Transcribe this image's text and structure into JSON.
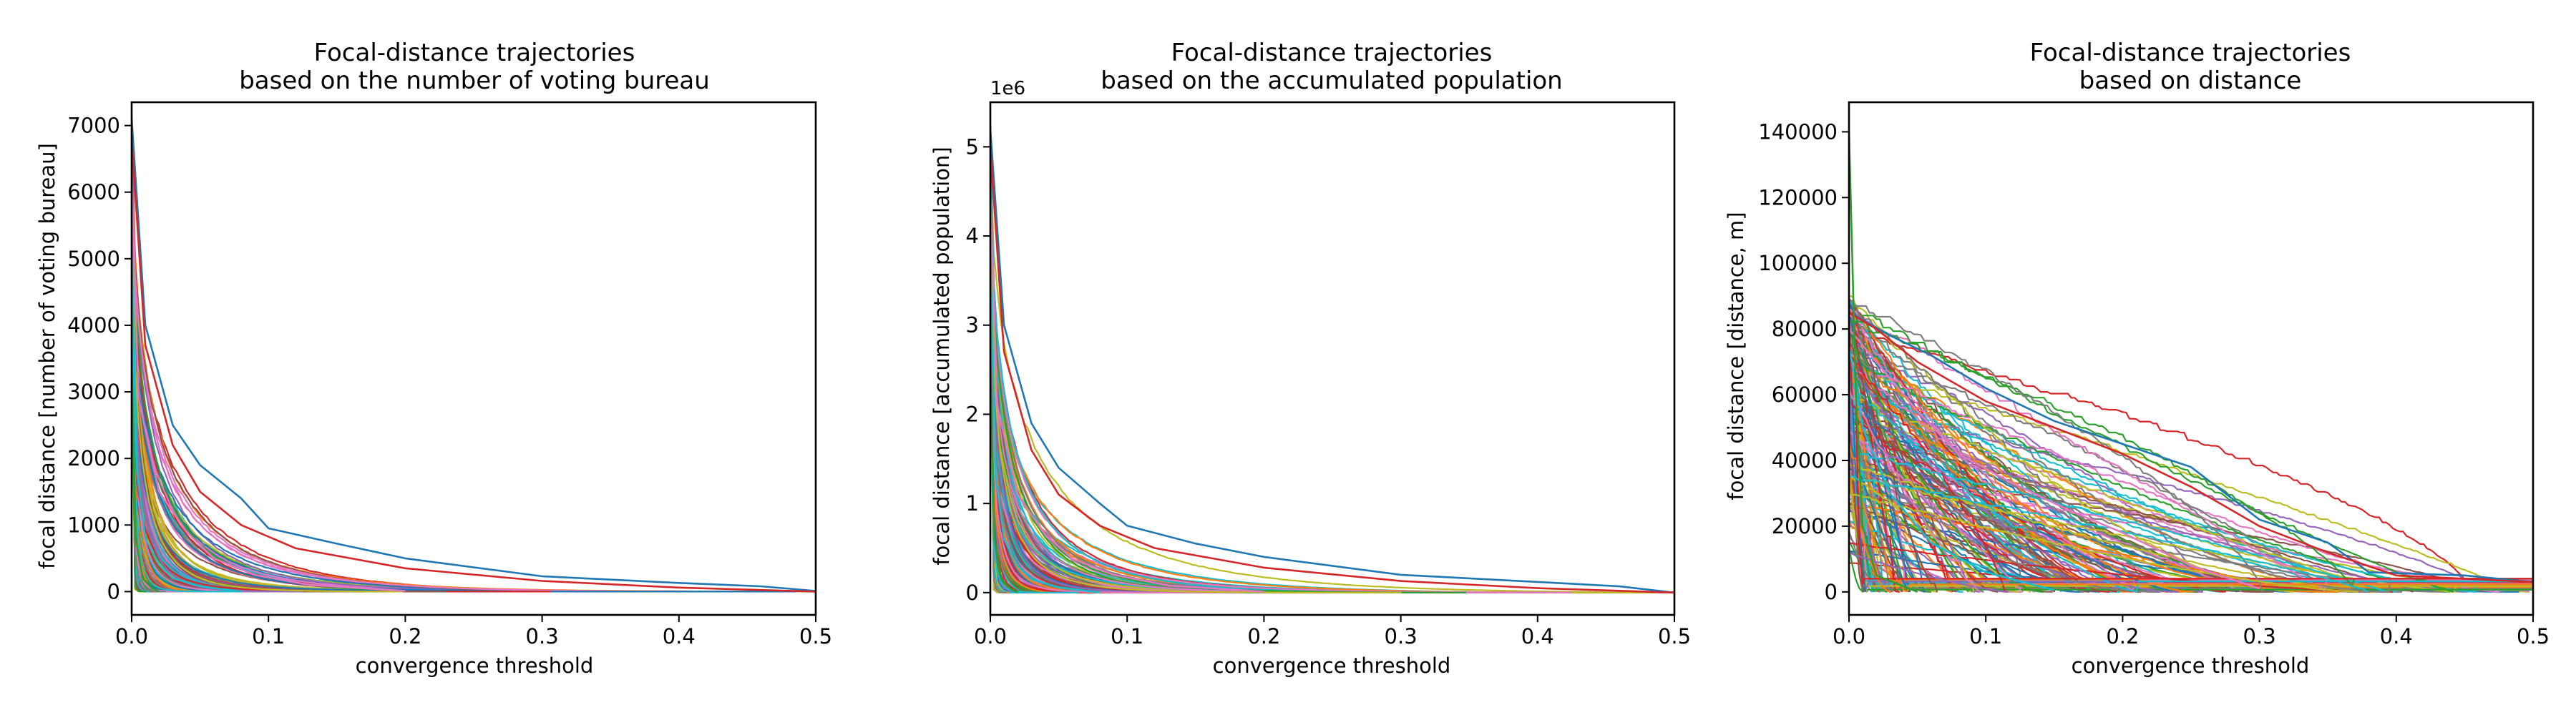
{
  "chart_data": [
    {
      "type": "line",
      "title": "Focal-distance trajectories\nbased on the number of voting bureau",
      "title_lines": [
        "Focal-distance trajectories",
        "based on the number of voting bureau"
      ],
      "xlabel": "convergence threshold",
      "ylabel": "focal distance [number of voting bureau]",
      "xlim": [
        0.0,
        0.5
      ],
      "ylim": [
        -350,
        7350
      ],
      "x_ticks": [
        0.0,
        0.1,
        0.2,
        0.3,
        0.4,
        0.5
      ],
      "x_tick_labels": [
        "0.0",
        "0.1",
        "0.2",
        "0.3",
        "0.4",
        "0.5"
      ],
      "y_ticks": [
        0,
        1000,
        2000,
        3000,
        4000,
        5000,
        6000,
        7000
      ],
      "y_tick_labels": [
        "0",
        "1000",
        "2000",
        "3000",
        "4000",
        "5000",
        "6000",
        "7000"
      ],
      "offset_label": "",
      "grid": false,
      "legend": "none",
      "series_count": 220,
      "representative_series": [
        {
          "x": [
            0.0,
            0.01,
            0.03,
            0.05,
            0.08,
            0.1,
            0.15,
            0.2,
            0.3,
            0.4,
            0.46,
            0.5
          ],
          "y": [
            7100,
            4000,
            2500,
            1900,
            1400,
            950,
            720,
            500,
            230,
            130,
            80,
            10
          ]
        },
        {
          "x": [
            0.0,
            0.01,
            0.03,
            0.05,
            0.08,
            0.12,
            0.2,
            0.3,
            0.4,
            0.5
          ],
          "y": [
            6800,
            3700,
            2200,
            1500,
            1000,
            650,
            350,
            160,
            60,
            0
          ]
        },
        {
          "x": [
            0.0,
            0.005,
            0.02,
            0.04,
            0.06,
            0.09,
            0.13,
            0.2
          ],
          "y": [
            6200,
            2900,
            1500,
            900,
            500,
            250,
            100,
            10
          ]
        },
        {
          "x": [
            0.0,
            0.004,
            0.01,
            0.02,
            0.03,
            0.05,
            0.08
          ],
          "y": [
            5200,
            1800,
            800,
            400,
            200,
            80,
            0
          ]
        },
        {
          "x": [
            0.0,
            0.003,
            0.008,
            0.015,
            0.02
          ],
          "y": [
            3500,
            800,
            200,
            50,
            0
          ]
        }
      ]
    },
    {
      "type": "line",
      "title": "Focal-distance trajectories\nbased on the accumulated population",
      "title_lines": [
        "Focal-distance trajectories",
        "based on the accumulated population"
      ],
      "xlabel": "convergence threshold",
      "ylabel": "focal distance [accumulated population]",
      "xlim": [
        0.0,
        0.5
      ],
      "ylim": [
        -0.25,
        5.5
      ],
      "x_ticks": [
        0.0,
        0.1,
        0.2,
        0.3,
        0.4,
        0.5
      ],
      "x_tick_labels": [
        "0.0",
        "0.1",
        "0.2",
        "0.3",
        "0.4",
        "0.5"
      ],
      "y_ticks": [
        0,
        1,
        2,
        3,
        4,
        5
      ],
      "y_tick_labels": [
        "0",
        "1",
        "2",
        "3",
        "4",
        "5"
      ],
      "offset_label": "1e6",
      "grid": false,
      "legend": "none",
      "series_count": 220,
      "representative_series": [
        {
          "x": [
            0.0,
            0.01,
            0.03,
            0.05,
            0.08,
            0.1,
            0.15,
            0.2,
            0.3,
            0.4,
            0.46,
            0.5
          ],
          "y": [
            5.2,
            3.0,
            1.9,
            1.4,
            1.0,
            0.75,
            0.55,
            0.4,
            0.2,
            0.12,
            0.07,
            0.0
          ]
        },
        {
          "x": [
            0.0,
            0.01,
            0.03,
            0.05,
            0.08,
            0.12,
            0.2,
            0.3,
            0.4,
            0.5
          ],
          "y": [
            5.0,
            2.7,
            1.6,
            1.1,
            0.75,
            0.5,
            0.28,
            0.13,
            0.05,
            0.0
          ]
        },
        {
          "x": [
            0.0,
            0.005,
            0.02,
            0.04,
            0.06,
            0.09,
            0.13,
            0.2
          ],
          "y": [
            4.5,
            2.1,
            1.1,
            0.65,
            0.38,
            0.2,
            0.08,
            0.01
          ]
        },
        {
          "x": [
            0.0,
            0.004,
            0.01,
            0.02,
            0.03,
            0.05,
            0.08
          ],
          "y": [
            3.8,
            1.3,
            0.6,
            0.3,
            0.15,
            0.06,
            0.0
          ]
        },
        {
          "x": [
            0.0,
            0.003,
            0.008,
            0.015,
            0.02
          ],
          "y": [
            2.6,
            0.6,
            0.15,
            0.04,
            0.0
          ]
        }
      ]
    },
    {
      "type": "line",
      "title": "Focal-distance trajectories\nbased on distance",
      "title_lines": [
        "Focal-distance trajectories",
        "based on distance"
      ],
      "xlabel": "convergence threshold",
      "ylabel": "focal distance [distance, m]",
      "xlim": [
        0.0,
        0.5
      ],
      "ylim": [
        -7000,
        149000
      ],
      "x_ticks": [
        0.0,
        0.1,
        0.2,
        0.3,
        0.4,
        0.5
      ],
      "x_tick_labels": [
        "0.0",
        "0.1",
        "0.2",
        "0.3",
        "0.4",
        "0.5"
      ],
      "y_ticks": [
        0,
        20000,
        40000,
        60000,
        80000,
        100000,
        120000,
        140000
      ],
      "y_tick_labels": [
        "0",
        "20000",
        "40000",
        "60000",
        "80000",
        "100000",
        "120000",
        "140000"
      ],
      "offset_label": "",
      "grid": false,
      "legend": "none",
      "series_count": 220,
      "representative_series": [
        {
          "x": [
            0.0,
            0.005,
            0.03,
            0.06,
            0.1,
            0.15,
            0.2,
            0.25,
            0.3,
            0.35,
            0.38,
            0.45,
            0.5
          ],
          "y": [
            88000,
            84000,
            78000,
            72000,
            62000,
            52000,
            45000,
            38000,
            22000,
            15000,
            6000,
            5000,
            3000
          ]
        },
        {
          "x": [
            0.0,
            0.02,
            0.05,
            0.1,
            0.15,
            0.2,
            0.25,
            0.3,
            0.35,
            0.4,
            0.5
          ],
          "y": [
            85000,
            80000,
            70000,
            58000,
            50000,
            42000,
            32000,
            20000,
            12000,
            5000,
            3000
          ]
        },
        {
          "x": [
            0.0,
            0.02,
            0.05,
            0.08,
            0.12,
            0.16,
            0.2,
            0.25,
            0.3
          ],
          "y": [
            80000,
            70000,
            55000,
            42000,
            33000,
            25000,
            18000,
            8000,
            1000
          ]
        },
        {
          "x": [
            0.0,
            0.01,
            0.03,
            0.06,
            0.1,
            0.15
          ],
          "y": [
            75000,
            50000,
            30000,
            15000,
            6000,
            500
          ]
        },
        {
          "x": [
            0.0,
            0.005,
            0.01,
            0.02,
            0.05
          ],
          "y": [
            140000,
            60000,
            20000,
            5000,
            0
          ]
        }
      ]
    }
  ],
  "palette": [
    "#1f77b4",
    "#ff7f0e",
    "#2ca02c",
    "#d62728",
    "#9467bd",
    "#8c564b",
    "#e377c2",
    "#7f7f7f",
    "#bcbd22",
    "#17becf"
  ]
}
